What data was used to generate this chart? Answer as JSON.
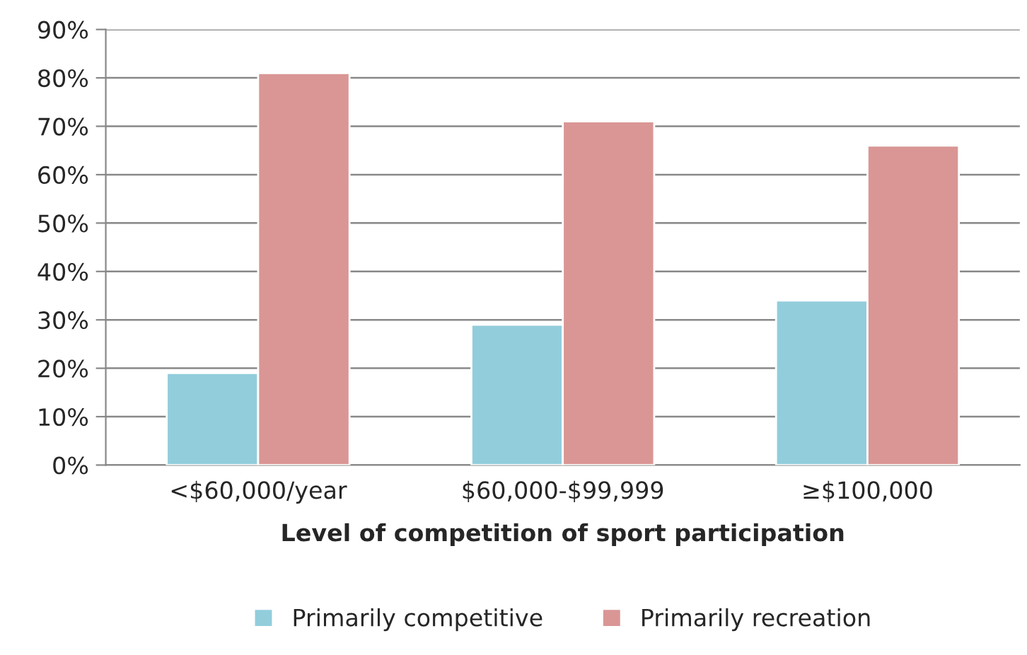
{
  "chart_data": {
    "type": "bar",
    "xlabel": "Level of competition of sport participation",
    "categories": [
      "<$60,000/year",
      "$60,000-$99,999",
      "≥$100,000"
    ],
    "series": [
      {
        "name": "Primarily competitive",
        "color": "#92cddc",
        "values": [
          19,
          29,
          34
        ]
      },
      {
        "name": "Primarily recreation",
        "color": "#d99694",
        "values": [
          81,
          71,
          66
        ]
      }
    ],
    "ylim": [
      0,
      90
    ],
    "yticks": [
      {
        "value": 0,
        "label": "0%"
      },
      {
        "value": 10,
        "label": "10%"
      },
      {
        "value": 20,
        "label": "20%"
      },
      {
        "value": 30,
        "label": "30%"
      },
      {
        "value": 40,
        "label": "40%"
      },
      {
        "value": 50,
        "label": "50%"
      },
      {
        "value": 60,
        "label": "60%"
      },
      {
        "value": 70,
        "label": "70%"
      },
      {
        "value": 80,
        "label": "80%"
      },
      {
        "value": 90,
        "label": "90%"
      }
    ],
    "grid": "y",
    "legend": "bottom"
  }
}
